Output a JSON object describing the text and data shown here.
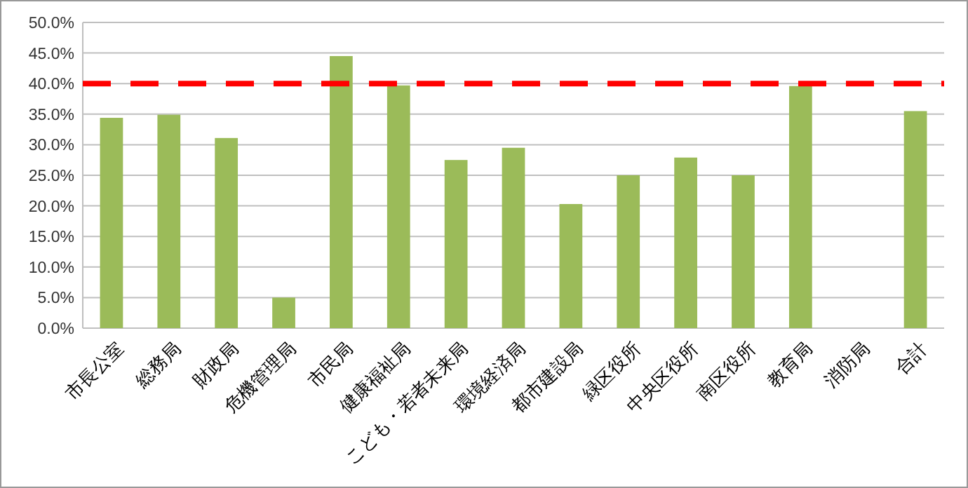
{
  "chart_data": {
    "type": "bar",
    "categories": [
      "市長公室",
      "総務局",
      "財政局",
      "危機管理局",
      "市民局",
      "健康福祉局",
      "こども・若者未来局",
      "環境経済局",
      "都市建設局",
      "緑区役所",
      "中央区役所",
      "南区役所",
      "教育局",
      "消防局",
      "合計"
    ],
    "values": [
      34.4,
      34.9,
      31.1,
      5.0,
      44.5,
      39.7,
      27.5,
      29.5,
      20.3,
      25.0,
      27.9,
      25.0,
      39.6,
      null,
      35.5
    ],
    "color": "#9bbb59",
    "ylim": [
      0,
      50
    ],
    "yticks": [
      {
        "value": 0,
        "label": "0.0%"
      },
      {
        "value": 5,
        "label": "5.0%"
      },
      {
        "value": 10,
        "label": "10.0%"
      },
      {
        "value": 15,
        "label": "15.0%"
      },
      {
        "value": 20,
        "label": "20.0%"
      },
      {
        "value": 25,
        "label": "25.0%"
      },
      {
        "value": 30,
        "label": "30.0%"
      },
      {
        "value": 35,
        "label": "35.0%"
      },
      {
        "value": 40,
        "label": "40.0%"
      },
      {
        "value": 45,
        "label": "45.0%"
      },
      {
        "value": 50,
        "label": "50.0%"
      }
    ],
    "grid": "y",
    "ref_lines": [
      {
        "axis": "y",
        "value": 40,
        "color": "#ff0000",
        "line_style": "dashed"
      }
    ]
  }
}
